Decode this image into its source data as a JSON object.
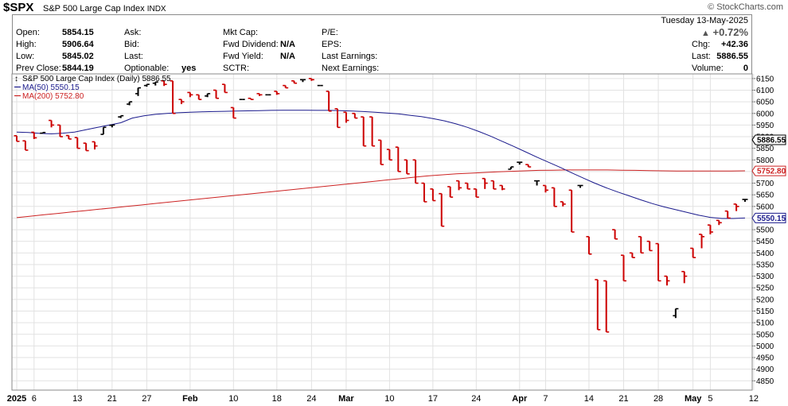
{
  "header": {
    "ticker": "$SPX",
    "name": "S&P 500 Large Cap Index",
    "exchange": "INDX",
    "watermark": "© StockCharts.com",
    "date": "Tuesday  13-May-2025",
    "pct_change": "+0.72%"
  },
  "stats": {
    "col1": [
      {
        "label": "Open:",
        "value": "5854.15"
      },
      {
        "label": "High:",
        "value": "5906.64"
      },
      {
        "label": "Low:",
        "value": "5845.02"
      },
      {
        "label": "Prev Close:",
        "value": "5844.19"
      }
    ],
    "col2": [
      {
        "label": "Ask:",
        "value": ""
      },
      {
        "label": "Bid:",
        "value": ""
      },
      {
        "label": "Last:",
        "value": ""
      },
      {
        "label": "Optionable:",
        "value": "yes"
      }
    ],
    "col3": [
      {
        "label": "Mkt Cap:",
        "value": ""
      },
      {
        "label": "Fwd Dividend:",
        "value": "N/A"
      },
      {
        "label": "Fwd Yield:",
        "value": "N/A"
      },
      {
        "label": "SCTR:",
        "value": ""
      }
    ],
    "col4": [
      {
        "label": "P/E:",
        "value": ""
      },
      {
        "label": "EPS:",
        "value": ""
      },
      {
        "label": "Last Earnings:",
        "value": ""
      },
      {
        "label": "Next Earnings:",
        "value": ""
      }
    ],
    "right": [
      {
        "label": "Chg:",
        "value": "+42.36"
      },
      {
        "label": "Last:",
        "value": "5886.55"
      },
      {
        "label": "Volume:",
        "value": "0"
      }
    ]
  },
  "chart_data": {
    "type": "ohlc",
    "legend": [
      {
        "name": "S&P 500 Large Cap Index (Daily) 5886.55",
        "color": "#000000",
        "icon": "ohlc-bar-icon"
      },
      {
        "name": "MA(50) 5550.15",
        "color": "#1a1a8c"
      },
      {
        "name": "MA(200) 5752.80",
        "color": "#cc2222"
      }
    ],
    "ylim": [
      4810,
      6170
    ],
    "yticks": [
      4850,
      4900,
      4950,
      5000,
      5050,
      5100,
      5150,
      5200,
      5250,
      5300,
      5350,
      5400,
      5450,
      5500,
      5550,
      5600,
      5650,
      5700,
      5750,
      5800,
      5850,
      5900,
      5950,
      6000,
      6050,
      6100,
      6150
    ],
    "xlabels": [
      {
        "i": 0,
        "label": "2025",
        "bold": true
      },
      {
        "i": 2,
        "label": "6"
      },
      {
        "i": 7,
        "label": "13"
      },
      {
        "i": 11,
        "label": "21"
      },
      {
        "i": 15,
        "label": "27"
      },
      {
        "i": 20,
        "label": "Feb",
        "bold": true
      },
      {
        "i": 25,
        "label": "10"
      },
      {
        "i": 30,
        "label": "18"
      },
      {
        "i": 34,
        "label": "24"
      },
      {
        "i": 38,
        "label": "Mar",
        "bold": true
      },
      {
        "i": 43,
        "label": "10"
      },
      {
        "i": 48,
        "label": "17"
      },
      {
        "i": 53,
        "label": "24"
      },
      {
        "i": 58,
        "label": "Apr",
        "bold": true
      },
      {
        "i": 61,
        "label": "7"
      },
      {
        "i": 66,
        "label": "14"
      },
      {
        "i": 70,
        "label": "21"
      },
      {
        "i": 74,
        "label": "28"
      },
      {
        "i": 78,
        "label": "May",
        "bold": true
      },
      {
        "i": 80,
        "label": "5"
      },
      {
        "i": 85,
        "label": "12"
      }
    ],
    "bars": [
      [
        5904,
        5875,
        5890,
        5880
      ],
      [
        5882,
        5827,
        5868,
        5842
      ],
      [
        5919,
        5883,
        5890,
        5895
      ],
      [
        5915,
        5912,
        5918,
        5918
      ],
      [
        5970,
        5915,
        5940,
        5950
      ],
      [
        5950,
        5877,
        5945,
        5900
      ],
      [
        5905,
        5885,
        5900,
        5890
      ],
      [
        5896,
        5835,
        5890,
        5850
      ],
      [
        5872,
        5805,
        5860,
        5840
      ],
      [
        5878,
        5838,
        5845,
        5860
      ],
      [
        5910,
        5915,
        5920,
        5940
      ],
      [
        5949,
        5936,
        5940,
        5950
      ],
      [
        5985,
        5960,
        5980,
        5990
      ],
      [
        6040,
        6020,
        6035,
        6050
      ],
      [
        6085,
        6065,
        6075,
        6110
      ],
      [
        6120,
        6100,
        6115,
        6125
      ],
      [
        6130,
        6110,
        6120,
        6135
      ],
      [
        6140,
        6100,
        6118,
        6125
      ],
      [
        6140,
        6020,
        6040,
        6000
      ],
      [
        6060,
        6030,
        6040,
        6050
      ],
      [
        6090,
        6060,
        6070,
        6080
      ],
      [
        6080,
        6040,
        6060,
        6060
      ],
      [
        6075,
        6070,
        6070,
        6085
      ],
      [
        6100,
        6060,
        6080,
        6065
      ],
      [
        6125,
        6080,
        6100,
        6090
      ],
      [
        6025,
        5995,
        6020,
        5980
      ],
      [
        6060,
        6050,
        6060,
        6060
      ],
      [
        6065,
        6040,
        6060,
        6060
      ],
      [
        6085,
        6060,
        6075,
        6080
      ],
      [
        6080,
        6060,
        6080,
        6080
      ],
      [
        6095,
        6066,
        6080,
        6085
      ],
      [
        6120,
        6100,
        6110,
        6110
      ],
      [
        6140,
        6110,
        6135,
        6130
      ],
      [
        6145,
        6130,
        6135,
        6145
      ],
      [
        6150,
        6120,
        6140,
        6145
      ],
      [
        6120,
        6110,
        6120,
        6120
      ],
      [
        6095,
        6000,
        6060,
        6010
      ],
      [
        6020,
        5930,
        5980,
        5940
      ],
      [
        6005,
        5930,
        5960,
        5970
      ],
      [
        6000,
        5960,
        5980,
        5980
      ],
      [
        5985,
        5840,
        5950,
        5860
      ],
      [
        5985,
        5840,
        5950,
        5860
      ],
      [
        5885,
        5735,
        5870,
        5780
      ],
      [
        5845,
        5785,
        5800,
        5800
      ],
      [
        5855,
        5770,
        5800,
        5750
      ],
      [
        5800,
        5735,
        5745,
        5740
      ],
      [
        5800,
        5700,
        5750,
        5700
      ],
      [
        5700,
        5605,
        5660,
        5620
      ],
      [
        5675,
        5565,
        5650,
        5625
      ],
      [
        5655,
        5500,
        5650,
        5515
      ],
      [
        5685,
        5625,
        5650,
        5640
      ],
      [
        5710,
        5635,
        5670,
        5680
      ],
      [
        5700,
        5655,
        5680,
        5675
      ],
      [
        5675,
        5615,
        5655,
        5640
      ],
      [
        5720,
        5660,
        5675,
        5700
      ],
      [
        5710,
        5640,
        5680,
        5675
      ],
      [
        5690,
        5640,
        5670,
        5675
      ],
      [
        5760,
        5760,
        5760,
        5770
      ],
      [
        5790,
        5780,
        5780,
        5790
      ],
      [
        5780,
        5760,
        5770,
        5770
      ],
      [
        5710,
        5680,
        5690,
        5710
      ],
      [
        5690,
        5640,
        5660,
        5670
      ],
      [
        5680,
        5580,
        5640,
        5600
      ],
      [
        5620,
        5580,
        5600,
        5610
      ],
      [
        5670,
        5520,
        5640,
        5490
      ],
      [
        5690,
        5670,
        5680,
        5690
      ],
      [
        5470,
        5380,
        5460,
        5395
      ],
      [
        5285,
        4980,
        5250,
        5070
      ],
      [
        5280,
        4980,
        5250,
        5060
      ],
      [
        5500,
        5000,
        5470,
        5460
      ],
      [
        5390,
        5250,
        5380,
        5280
      ],
      [
        5400,
        5360,
        5380,
        5380
      ],
      [
        5470,
        5380,
        5450,
        5400
      ],
      [
        5450,
        5360,
        5440,
        5410
      ],
      [
        5440,
        5240,
        5390,
        5280
      ],
      [
        5300,
        5220,
        5260,
        5280
      ],
      [
        5130,
        5100,
        5120,
        5160
      ],
      [
        5320,
        5250,
        5270,
        5300
      ],
      [
        5420,
        5360,
        5380,
        5380
      ],
      [
        5480,
        5370,
        5420,
        5470
      ],
      [
        5520,
        5460,
        5480,
        5490
      ],
      [
        5540,
        5470,
        5520,
        5530
      ],
      [
        5580,
        5510,
        5550,
        5550
      ],
      [
        5610,
        5570,
        5580,
        5600
      ],
      [
        5630,
        5600,
        5620,
        5630
      ]
    ],
    "ma50": [
      5920,
      5918,
      5914,
      5912,
      5915,
      5920,
      5930,
      5940,
      5950,
      5960,
      5980,
      5990,
      5996,
      6000,
      6003,
      6005,
      6007,
      6008,
      6009,
      6010,
      6011,
      6012,
      6013,
      6014,
      6014,
      6014,
      6013,
      6013,
      6012,
      6010,
      6008,
      6005,
      6002,
      5998,
      5992,
      5986,
      5978,
      5968,
      5955,
      5940,
      5922,
      5902,
      5880,
      5858,
      5835,
      5812,
      5790,
      5768,
      5745,
      5722,
      5700,
      5680,
      5662,
      5645,
      5628,
      5612,
      5598,
      5586,
      5574,
      5562,
      5553,
      5548,
      5548,
      5550
    ],
    "ma200": [
      5552,
      5558,
      5564,
      5570,
      5576,
      5582,
      5588,
      5594,
      5600,
      5606,
      5612,
      5618,
      5624,
      5630,
      5636,
      5642,
      5648,
      5654,
      5660,
      5666,
      5672,
      5678,
      5684,
      5690,
      5696,
      5702,
      5708,
      5714,
      5720,
      5726,
      5732,
      5736,
      5740,
      5743,
      5746,
      5749,
      5751,
      5753,
      5755,
      5756,
      5757,
      5757,
      5757,
      5757,
      5756,
      5755,
      5754,
      5753,
      5752,
      5752,
      5752,
      5752,
      5752,
      5753
    ],
    "tags": [
      {
        "value": 5886.55,
        "label": "5886.55",
        "color": "#000000"
      },
      {
        "value": 5752.8,
        "label": "5752.80",
        "color": "#cc2222"
      },
      {
        "value": 5550.15,
        "label": "5550.15",
        "color": "#1a1a8c"
      }
    ]
  }
}
